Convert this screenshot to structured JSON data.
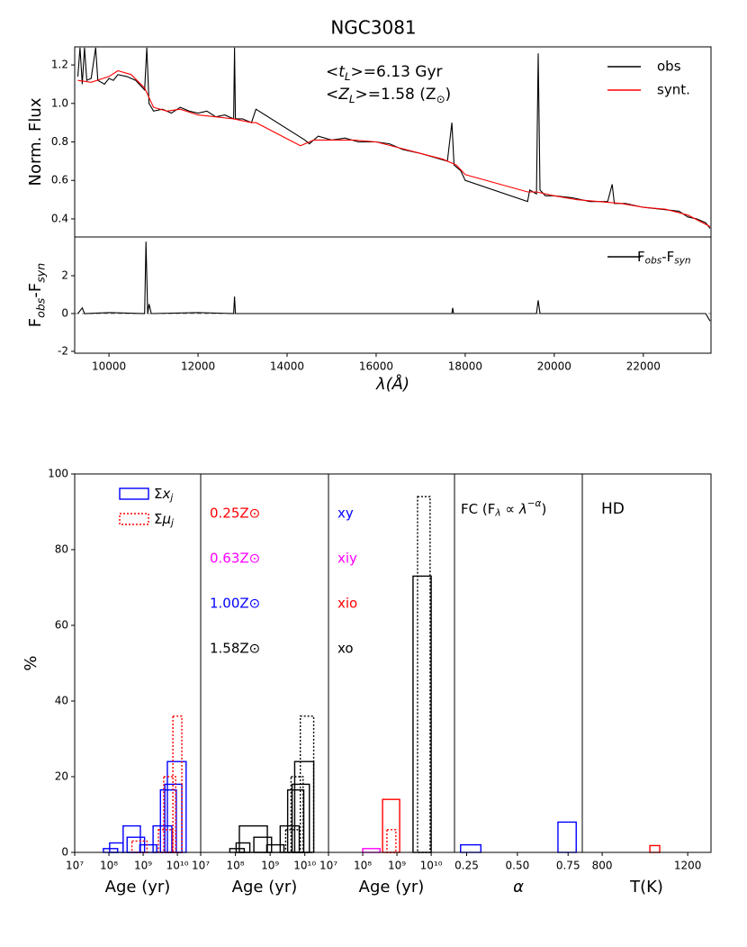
{
  "chart_data": [
    {
      "type": "line",
      "title": "NGC3081",
      "ylabel": "Norm. Flux",
      "xlim": [
        9230,
        23520
      ],
      "ylim": [
        0.306,
        1.294
      ],
      "yticks": [
        0.4,
        0.6,
        0.8,
        {
          "value": 1,
          "label": "1.0"
        },
        1.2
      ],
      "annotations": [
        [
          [
            "<",
            ""
          ],
          [
            "t",
            "i"
          ],
          [
            "L",
            "isub"
          ],
          [
            ">=6.13 Gyr",
            ""
          ]
        ],
        [
          [
            "<",
            ""
          ],
          [
            "Z",
            "i"
          ],
          [
            "L",
            "isub"
          ],
          [
            ">=1.58 (Z",
            ""
          ],
          [
            "⊙",
            "sub"
          ],
          [
            ")",
            ""
          ]
        ]
      ],
      "legend": "upper right",
      "series": [
        {
          "name": "obs",
          "color": "#000000",
          "x": [
            9300,
            9350,
            9400,
            9450,
            9500,
            9600,
            9700,
            9750,
            9900,
            10000,
            10100,
            10200,
            10400,
            10600,
            10800,
            10850,
            10900,
            11000,
            11200,
            11400,
            11600,
            11800,
            12000,
            12200,
            12400,
            12600,
            12800,
            12820,
            12840,
            13000,
            13200,
            13300,
            14400,
            14500,
            14700,
            15000,
            15300,
            15600,
            16000,
            16300,
            16600,
            17000,
            17300,
            17600,
            17700,
            17750,
            17900,
            18000,
            19400,
            19450,
            19600,
            19640,
            19680,
            19800,
            20000,
            20400,
            20800,
            21200,
            21300,
            21350,
            21600,
            22000,
            22400,
            22800,
            23000,
            23200,
            23400,
            23500
          ],
          "values": [
            1.14,
            1.29,
            1.1,
            1.29,
            1.12,
            1.13,
            1.29,
            1.12,
            1.1,
            1.13,
            1.12,
            1.15,
            1.14,
            1.12,
            1.07,
            1.29,
            1.0,
            0.96,
            0.97,
            0.95,
            0.98,
            0.96,
            0.95,
            0.96,
            0.93,
            0.94,
            0.92,
            1.29,
            0.92,
            0.92,
            0.9,
            0.97,
            0.81,
            0.79,
            0.83,
            0.81,
            0.82,
            0.8,
            0.8,
            0.79,
            0.76,
            0.74,
            0.72,
            0.7,
            0.9,
            0.68,
            0.65,
            0.6,
            0.49,
            0.55,
            0.53,
            1.26,
            0.55,
            0.52,
            0.52,
            0.51,
            0.49,
            0.49,
            0.58,
            0.48,
            0.48,
            0.46,
            0.45,
            0.44,
            0.41,
            0.4,
            0.38,
            0.35
          ]
        },
        {
          "name": "synt.",
          "color": "#ff0000",
          "x": [
            9300,
            9600,
            10000,
            10200,
            10500,
            10800,
            11000,
            11300,
            11600,
            12000,
            12400,
            12800,
            13200,
            13300,
            14300,
            14600,
            15000,
            15500,
            16000,
            16500,
            17000,
            17500,
            17800,
            18000,
            19400,
            19600,
            20000,
            20500,
            21000,
            21500,
            22000,
            22500,
            23000,
            23500
          ],
          "values": [
            1.12,
            1.11,
            1.14,
            1.17,
            1.15,
            1.08,
            0.98,
            0.96,
            0.97,
            0.94,
            0.93,
            0.92,
            0.9,
            0.9,
            0.78,
            0.81,
            0.81,
            0.81,
            0.8,
            0.77,
            0.74,
            0.71,
            0.68,
            0.63,
            0.54,
            0.54,
            0.52,
            0.5,
            0.49,
            0.48,
            0.46,
            0.45,
            0.42,
            0.36
          ]
        }
      ]
    },
    {
      "type": "line",
      "ylabel": [
        [
          "F",
          ""
        ],
        [
          "obs",
          "isub"
        ],
        [
          "-F",
          ""
        ],
        [
          "syn",
          "isub"
        ]
      ],
      "xlabel": [
        [
          "λ(Å)",
          "i"
        ]
      ],
      "xlim": [
        9230,
        23520
      ],
      "ylim": [
        -2.1,
        4.05
      ],
      "xticks": [
        10000,
        12000,
        14000,
        16000,
        18000,
        20000,
        22000
      ],
      "yticks": [
        -2,
        0,
        2
      ],
      "legend": "upper right",
      "series": [
        {
          "name": [
            [
              "F",
              ""
            ],
            [
              "obs",
              "isub"
            ],
            [
              "-F",
              ""
            ],
            [
              "syn",
              "isub"
            ]
          ],
          "color": "#000000",
          "x": [
            9300,
            9400,
            9450,
            10000,
            10800,
            10830,
            10870,
            10900,
            10950,
            12000,
            12800,
            12820,
            12840,
            14000,
            17700,
            17720,
            17740,
            19600,
            19640,
            19680,
            23400,
            23500
          ],
          "values": [
            0,
            0.3,
            0,
            0.05,
            0,
            3.8,
            0,
            0.5,
            0,
            0.05,
            0,
            0.9,
            0,
            0,
            0,
            0.3,
            0,
            0,
            0.7,
            0,
            0,
            -0.4
          ]
        }
      ]
    },
    {
      "type": "step-bar",
      "xlabel": "Age (yr)",
      "ylabel": "%",
      "xlog": true,
      "xlim": [
        10000000,
        48000000000
      ],
      "ylim": [
        0,
        100
      ],
      "xticks": [
        {
          "value": 10000000,
          "label": "10⁷"
        },
        {
          "value": 100000000,
          "label": "10⁸"
        },
        {
          "value": 1000000000,
          "label": "10⁹"
        },
        {
          "value": 10000000000,
          "label": "10¹⁰"
        }
      ],
      "yticks": [
        0,
        20,
        40,
        60,
        80,
        100
      ],
      "legend": [
        {
          "name": [
            [
              "Σ",
              ""
            ],
            [
              "x",
              "i"
            ],
            [
              "j",
              "isub"
            ]
          ],
          "color": "#0000ff",
          "linestyle": "solid"
        },
        {
          "name": [
            [
              "Σ",
              ""
            ],
            [
              "μ",
              "i"
            ],
            [
              "j",
              "isub"
            ]
          ],
          "color": "#ff0000",
          "linestyle": "dotted"
        }
      ],
      "bars": [
        {
          "bins": [
            69000000,
            180000000
          ],
          "value": 1,
          "color": "#0000ff",
          "linestyle": "solid"
        },
        {
          "bins": [
            105000000,
            260000000
          ],
          "value": 2.5,
          "color": "#0000ff",
          "linestyle": "solid"
        },
        {
          "bins": [
            260000000,
            830000000
          ],
          "value": 7,
          "color": "#0000ff",
          "linestyle": "solid"
        },
        {
          "bins": [
            340000000,
            1100000000
          ],
          "value": 4,
          "color": "#0000ff",
          "linestyle": "solid"
        },
        {
          "bins": [
            800000000,
            2500000000
          ],
          "value": 2,
          "color": "#0000ff",
          "linestyle": "solid"
        },
        {
          "bins": [
            1950000000,
            6900000000
          ],
          "value": 7,
          "color": "#0000ff",
          "linestyle": "solid"
        },
        {
          "bins": [
            3200000000,
            9300000000
          ],
          "value": 16.5,
          "color": "#0000ff",
          "linestyle": "solid"
        },
        {
          "bins": [
            4300000000,
            13500000000
          ],
          "value": 18,
          "color": "#0000ff",
          "linestyle": "solid"
        },
        {
          "bins": [
            5100000000,
            18000000000
          ],
          "value": 24,
          "color": "#0000ff",
          "linestyle": "solid"
        },
        {
          "bins": [
            470000000,
            1300000000
          ],
          "value": 3,
          "color": "#ff0000",
          "linestyle": "dotted"
        },
        {
          "bins": [
            2800000000,
            7200000000
          ],
          "value": 6,
          "color": "#ff0000",
          "linestyle": "dotted"
        },
        {
          "bins": [
            4000000000,
            8900000000
          ],
          "value": 20,
          "color": "#ff0000",
          "linestyle": "dotted"
        },
        {
          "bins": [
            7400000000,
            13500000000
          ],
          "value": 36,
          "color": "#ff0000",
          "linestyle": "dotted"
        }
      ]
    },
    {
      "type": "step-bar",
      "xlabel": "Age (yr)",
      "xlog": true,
      "xlim": [
        10000000,
        48000000000
      ],
      "ylim": [
        0,
        100
      ],
      "xticks": [
        {
          "value": 10000000,
          "label": "10⁷"
        },
        {
          "value": 100000000,
          "label": "10⁸"
        },
        {
          "value": 1000000000,
          "label": "10⁹"
        },
        {
          "value": 10000000000,
          "label": "10¹⁰"
        }
      ],
      "labels": [
        {
          "text": "0.25Z⊙",
          "color": "#ff0000"
        },
        {
          "text": "0.63Z⊙",
          "color": "#ff00ff"
        },
        {
          "text": "1.00Z⊙",
          "color": "#0000ff"
        },
        {
          "text": "1.58Z⊙",
          "color": "#000000"
        }
      ],
      "bars": [
        {
          "bins": [
            69000000,
            180000000
          ],
          "value": 1,
          "color": "#000000",
          "linestyle": "solid"
        },
        {
          "bins": [
            105000000,
            260000000
          ],
          "value": 2.5,
          "color": "#000000",
          "linestyle": "solid"
        },
        {
          "bins": [
            130000000,
            830000000
          ],
          "value": 7,
          "color": "#000000",
          "linestyle": "solid"
        },
        {
          "bins": [
            340000000,
            1100000000
          ],
          "value": 4,
          "color": "#000000",
          "linestyle": "solid"
        },
        {
          "bins": [
            800000000,
            2500000000
          ],
          "value": 2,
          "color": "#000000",
          "linestyle": "solid"
        },
        {
          "bins": [
            1950000000,
            6900000000
          ],
          "value": 7,
          "color": "#000000",
          "linestyle": "solid"
        },
        {
          "bins": [
            3200000000,
            9300000000
          ],
          "value": 16.5,
          "color": "#000000",
          "linestyle": "solid"
        },
        {
          "bins": [
            4300000000,
            13500000000
          ],
          "value": 18,
          "color": "#000000",
          "linestyle": "solid"
        },
        {
          "bins": [
            5100000000,
            18000000000
          ],
          "value": 24,
          "color": "#000000",
          "linestyle": "solid"
        },
        {
          "bins": [
            2800000000,
            7200000000
          ],
          "value": 6,
          "color": "#000000",
          "linestyle": "dotted"
        },
        {
          "bins": [
            4000000000,
            8900000000
          ],
          "value": 20,
          "color": "#000000",
          "linestyle": "dotted"
        },
        {
          "bins": [
            7400000000,
            18000000000
          ],
          "value": 36,
          "color": "#000000",
          "linestyle": "dotted"
        }
      ]
    },
    {
      "type": "step-bar",
      "xlabel": "Age (yr)",
      "xlog": true,
      "xlim": [
        10000000,
        48000000000
      ],
      "ylim": [
        0,
        100
      ],
      "xticks": [
        {
          "value": 10000000,
          "label": "10⁷"
        },
        {
          "value": 100000000,
          "label": "10⁸"
        },
        {
          "value": 1000000000,
          "label": "10⁹"
        },
        {
          "value": 10000000000,
          "label": "10¹⁰"
        }
      ],
      "labels": [
        {
          "text": "xy",
          "color": "#0000ff"
        },
        {
          "text": "xiy",
          "color": "#ff00ff"
        },
        {
          "text": "xio",
          "color": "#ff0000"
        },
        {
          "text": "xo",
          "color": "#000000"
        }
      ],
      "bars": [
        {
          "bins": [
            100000000,
            320000000
          ],
          "value": 1,
          "color": "#ff00ff",
          "linestyle": "solid"
        },
        {
          "bins": [
            380000000,
            1200000000
          ],
          "value": 14,
          "color": "#ff0000",
          "linestyle": "solid"
        },
        {
          "bins": [
            510000000,
            930000000
          ],
          "value": 6,
          "color": "#ff0000",
          "linestyle": "dotted"
        },
        {
          "bins": [
            2950000000,
            10000000000
          ],
          "value": 73,
          "color": "#000000",
          "linestyle": "solid"
        },
        {
          "bins": [
            4000000000,
            9300000000
          ],
          "value": 94,
          "color": "#000000",
          "linestyle": "dotted"
        }
      ]
    },
    {
      "type": "step-bar",
      "xlabel": [
        [
          "α",
          "i"
        ]
      ],
      "xlim": [
        0.19,
        0.82
      ],
      "ylim": [
        0,
        100
      ],
      "xticks": [
        0.25,
        {
          "value": 0.5,
          "label": "0.50"
        },
        0.75
      ],
      "labels": [
        {
          "text": [
            [
              "FC (F",
              ""
            ],
            [
              "λ",
              "isub"
            ],
            [
              " ∝ ",
              ""
            ],
            [
              "λ",
              "i"
            ],
            [
              "−α",
              "isup"
            ],
            [
              ")",
              ""
            ]
          ],
          "color": "#000000"
        }
      ],
      "bars": [
        {
          "bins": [
            0.22,
            0.32
          ],
          "value": 2,
          "color": "#0000ff",
          "linestyle": "solid"
        },
        {
          "bins": [
            0.7,
            0.79
          ],
          "value": 8,
          "color": "#0000ff",
          "linestyle": "solid"
        }
      ]
    },
    {
      "type": "step-bar",
      "xlabel": "T(K)",
      "xlim": [
        707,
        1309
      ],
      "ylim": [
        0,
        100
      ],
      "xticks": [
        800,
        1200
      ],
      "labels": [
        {
          "text": "HD",
          "color": "#000000"
        }
      ],
      "bars": [
        {
          "bins": [
            1023,
            1069
          ],
          "value": 1.8,
          "color": "#ff0000",
          "linestyle": "solid"
        }
      ]
    }
  ]
}
